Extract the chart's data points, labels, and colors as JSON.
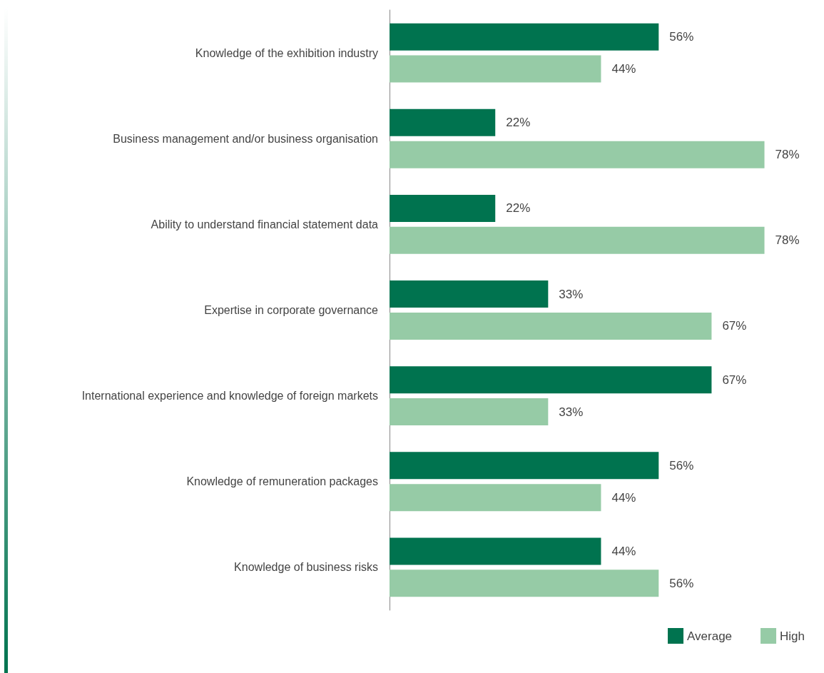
{
  "chart_data": {
    "type": "bar",
    "orientation": "horizontal",
    "categories": [
      "Knowledge of the exhibition industry",
      "Business management and/or business organisation",
      "Ability to understand financial statement data",
      "Expertise in corporate governance",
      "International experience and knowledge of foreign markets",
      "Knowledge of remuneration packages",
      "Knowledge of business risks"
    ],
    "series": [
      {
        "name": "Average",
        "color": "#00734f",
        "values": [
          56,
          22,
          22,
          33,
          67,
          56,
          44
        ],
        "value_labels": [
          "56%",
          "22%",
          "22%",
          "33%",
          "67%",
          "56%",
          "44%"
        ]
      },
      {
        "name": "High",
        "color": "#96cba6",
        "values": [
          44,
          78,
          78,
          67,
          33,
          44,
          56
        ],
        "value_labels": [
          "44%",
          "78%",
          "78%",
          "67%",
          "33%",
          "44%",
          "56%"
        ]
      }
    ],
    "legend": "bottom right"
  }
}
